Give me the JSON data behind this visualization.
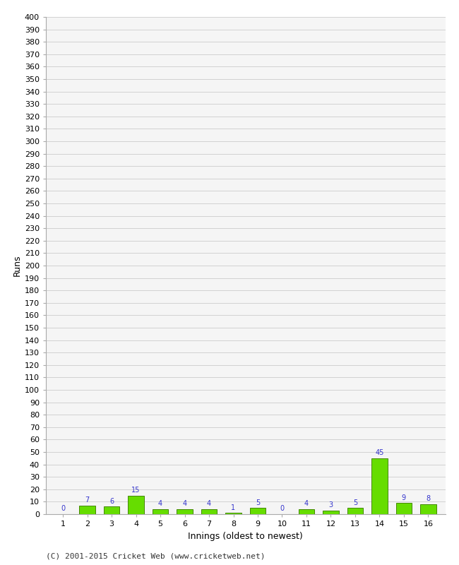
{
  "xlabel": "Innings (oldest to newest)",
  "ylabel": "Runs",
  "categories": [
    "1",
    "2",
    "3",
    "4",
    "5",
    "6",
    "7",
    "8",
    "9",
    "10",
    "11",
    "12",
    "13",
    "14",
    "15",
    "16"
  ],
  "values": [
    0,
    7,
    6,
    15,
    4,
    4,
    4,
    1,
    5,
    0,
    4,
    3,
    5,
    45,
    9,
    8
  ],
  "bar_color": "#66dd00",
  "bar_edge_color": "#448800",
  "value_label_color": "#3333cc",
  "ylim_min": 0,
  "ylim_max": 400,
  "ytick_step": 10,
  "background_color": "#ffffff",
  "plot_bg_color": "#f5f5f5",
  "grid_color": "#cccccc",
  "footer": "(C) 2001-2015 Cricket Web (www.cricketweb.net)",
  "ylabel_fontsize": 9,
  "xlabel_fontsize": 9,
  "tick_fontsize": 8,
  "value_fontsize": 7,
  "footer_fontsize": 8
}
